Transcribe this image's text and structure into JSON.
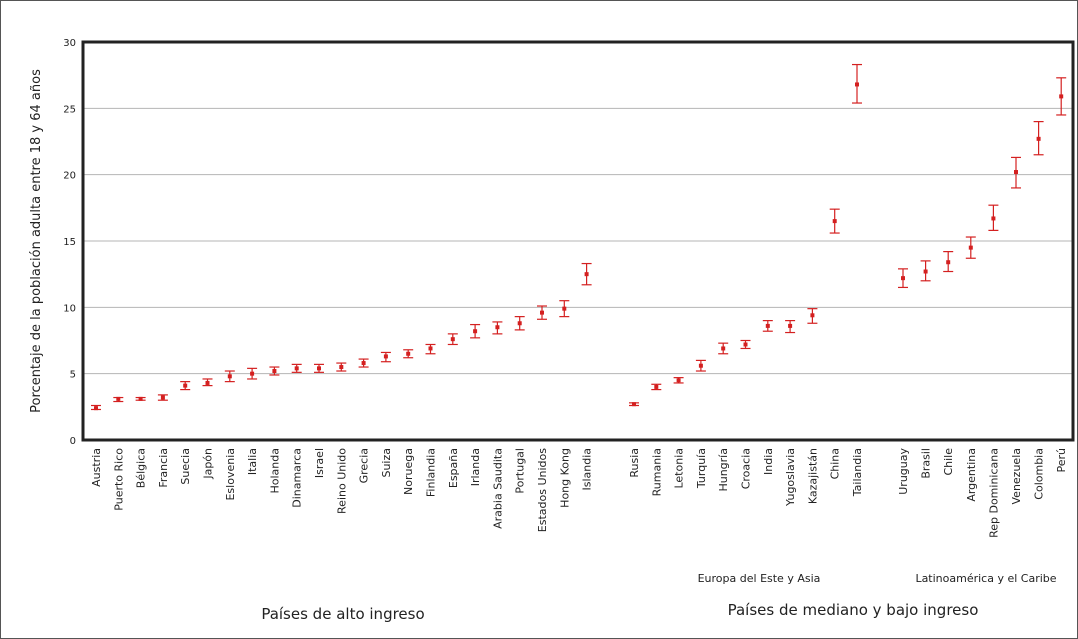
{
  "chart_data": {
    "type": "scatter",
    "ylabel": "Porcentaje de la población adulta entre 18 y 64 años",
    "ylim": [
      0,
      30
    ],
    "yticks": [
      0,
      5,
      10,
      15,
      20,
      25,
      30
    ],
    "grid": true,
    "error_bars": true,
    "color": "#d42020",
    "groups": [
      {
        "label": "Países de alto ingreso",
        "categories": [
          "Austria",
          "Puerto Rico",
          "Bélgica",
          "Francia",
          "Suecia",
          "Japón",
          "Eslovenia",
          "Italia",
          "Holanda",
          "Dinamarca",
          "Israel",
          "Reino Unido",
          "Grecia",
          "Suiza",
          "Noruega",
          "Finlandia",
          "España",
          "Irlanda",
          "Arabia Saudita",
          "Portugal",
          "Estados Unidos",
          "Hong Kong",
          "Islandia"
        ],
        "values": [
          2.4,
          3.1,
          3.1,
          3.2,
          4.1,
          4.3,
          4.8,
          5.0,
          5.2,
          5.4,
          5.4,
          5.5,
          5.8,
          6.3,
          6.5,
          6.9,
          7.6,
          8.2,
          8.5,
          8.8,
          9.6,
          9.9,
          12.5
        ],
        "err_low": [
          2.3,
          2.9,
          3.0,
          3.0,
          3.8,
          4.1,
          4.4,
          4.6,
          4.9,
          5.1,
          5.1,
          5.2,
          5.5,
          5.9,
          6.2,
          6.5,
          7.2,
          7.7,
          8.0,
          8.3,
          9.1,
          9.3,
          11.7
        ],
        "err_high": [
          2.6,
          3.2,
          3.2,
          3.4,
          4.4,
          4.6,
          5.2,
          5.4,
          5.5,
          5.7,
          5.7,
          5.8,
          6.1,
          6.6,
          6.8,
          7.2,
          8.0,
          8.7,
          8.9,
          9.3,
          10.1,
          10.5,
          13.3
        ]
      },
      {
        "label": "Europa del Este y Asia",
        "categories": [
          "Rusia",
          "Rumania",
          "Letonia",
          "Turquía",
          "Hungría",
          "Croacia",
          "India",
          "Yugoslavia",
          "Kazajistán",
          "China",
          "Tailandia"
        ],
        "values": [
          2.7,
          4.0,
          4.5,
          5.6,
          6.9,
          7.2,
          8.6,
          8.6,
          9.4,
          16.5,
          26.8
        ],
        "err_low": [
          2.6,
          3.8,
          4.3,
          5.2,
          6.5,
          6.9,
          8.2,
          8.1,
          8.8,
          15.6,
          25.4
        ],
        "err_high": [
          2.8,
          4.2,
          4.7,
          6.0,
          7.3,
          7.5,
          9.0,
          9.0,
          9.9,
          17.4,
          28.3
        ]
      },
      {
        "label": "Latinoamérica y el Caribe",
        "categories": [
          "Uruguay",
          "Brasil",
          "Chile",
          "Argentina",
          "Rep Dominicana",
          "Venezuela",
          "Colombia",
          "Perú"
        ],
        "values": [
          12.2,
          12.7,
          13.4,
          14.5,
          16.7,
          20.2,
          22.7,
          25.9
        ],
        "err_low": [
          11.5,
          12.0,
          12.7,
          13.7,
          15.8,
          19.0,
          21.5,
          24.5
        ],
        "err_high": [
          12.9,
          13.5,
          14.2,
          15.3,
          17.7,
          21.3,
          24.0,
          27.3
        ]
      }
    ],
    "income_groups": [
      "Países de alto ingreso",
      "Países de mediano y bajo ingreso"
    ]
  }
}
